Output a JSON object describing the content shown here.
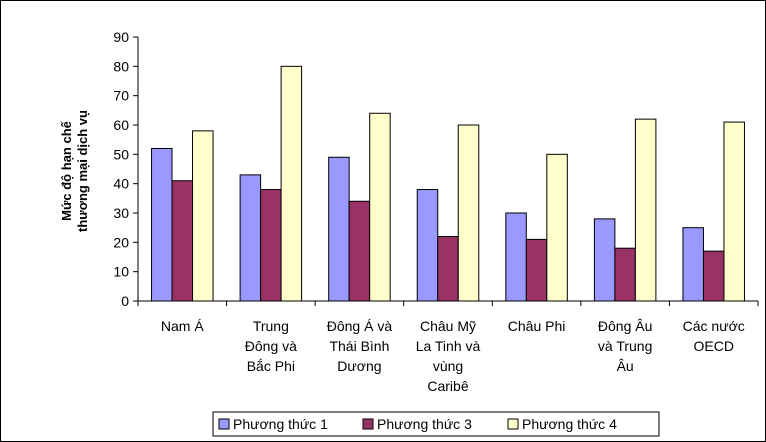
{
  "chart_data": {
    "type": "bar",
    "title": "",
    "xlabel": "",
    "ylabel_lines": [
      "Mức độ hạn chế",
      "thương mại dịch vụ"
    ],
    "ylim": [
      0,
      90
    ],
    "yticks": [
      0,
      10,
      20,
      30,
      40,
      50,
      60,
      70,
      80,
      90
    ],
    "grid": false,
    "legend_position": "bottom",
    "categories": [
      [
        "Nam Á"
      ],
      [
        "Trung",
        "Đông và",
        "Bắc Phi"
      ],
      [
        "Đông Á và",
        "Thái Bình",
        "Dương"
      ],
      [
        "Châu Mỹ",
        "La Tinh và",
        "vùng",
        "Caribê"
      ],
      [
        "Châu Phi"
      ],
      [
        "Đông Âu",
        "và Trung",
        "Âu"
      ],
      [
        "Các nước",
        "OECD"
      ]
    ],
    "series": [
      {
        "name": "Phương thức 1",
        "color": "#9999ff",
        "values": [
          52,
          43,
          49,
          38,
          30,
          28,
          25
        ]
      },
      {
        "name": "Phương thức 3",
        "color": "#993366",
        "values": [
          41,
          38,
          34,
          22,
          21,
          18,
          17
        ]
      },
      {
        "name": "Phương thức 4",
        "color": "#ffffcc",
        "values": [
          58,
          80,
          64,
          60,
          50,
          62,
          61
        ]
      }
    ]
  }
}
